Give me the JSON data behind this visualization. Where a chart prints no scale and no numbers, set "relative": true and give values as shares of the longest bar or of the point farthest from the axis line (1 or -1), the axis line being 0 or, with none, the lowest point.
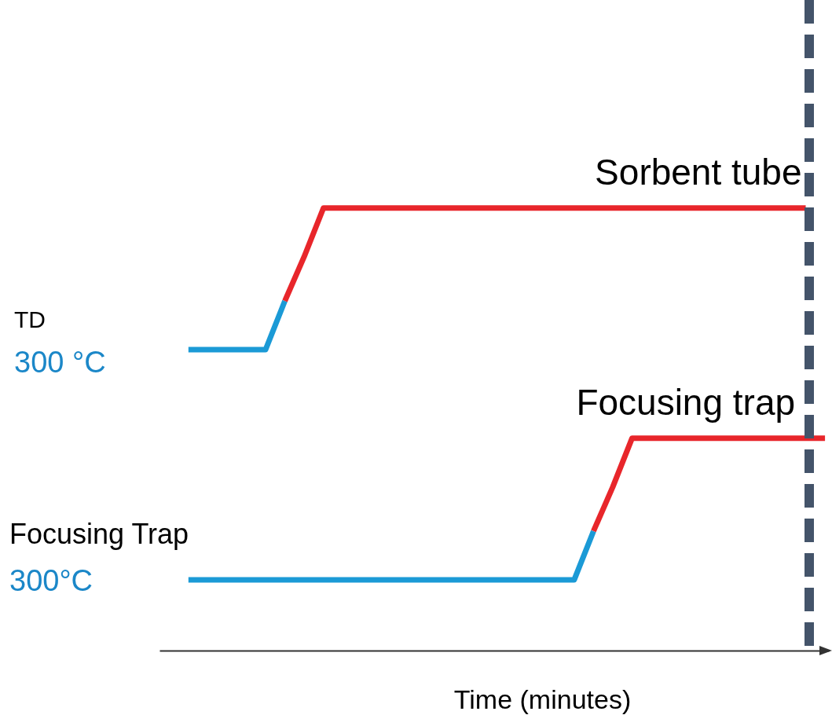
{
  "chart_data": {
    "type": "line",
    "relative": true,
    "xlabel": "Time (minutes)",
    "tick_labels": false,
    "categories": [
      null,
      null,
      null,
      null,
      null,
      null,
      null,
      null,
      null,
      null,
      null,
      null,
      null,
      null,
      null,
      null,
      null,
      null,
      null,
      null,
      null,
      null,
      null,
      null,
      null,
      null,
      null,
      null,
      null,
      null,
      null,
      null,
      null,
      null
    ],
    "series": [
      {
        "color": "#1b9ad6",
        "values": [
          0.68,
          0.68,
          0.68,
          0.68,
          0.68,
          0.79,
          null,
          null,
          null,
          null,
          null,
          null,
          null,
          null,
          null,
          null,
          null,
          null,
          null,
          null,
          null,
          null,
          null,
          null,
          null,
          null,
          null,
          null,
          null,
          null,
          null,
          null,
          null,
          null
        ]
      },
      {
        "name": "Sorbent tube",
        "color": "#e8262b",
        "values": [
          null,
          null,
          null,
          null,
          null,
          0.79,
          0.89,
          1,
          1,
          1,
          1,
          1,
          1,
          1,
          1,
          1,
          1,
          1,
          1,
          1,
          1,
          1,
          1,
          1,
          1,
          1,
          1,
          1,
          1,
          1,
          1,
          1,
          1,
          null
        ]
      },
      {
        "color": "#1b9ad6",
        "values": [
          0.16,
          0.16,
          0.16,
          0.16,
          0.16,
          0.16,
          0.16,
          0.16,
          0.16,
          0.16,
          0.16,
          0.16,
          0.16,
          0.16,
          0.16,
          0.16,
          0.16,
          0.16,
          0.16,
          0.16,
          0.16,
          0.27,
          null,
          null,
          null,
          null,
          null,
          null,
          null,
          null,
          null,
          null,
          null,
          null
        ]
      },
      {
        "name": "Focusing trap",
        "color": "#e8262b",
        "values": [
          null,
          null,
          null,
          null,
          null,
          null,
          null,
          null,
          null,
          null,
          null,
          null,
          null,
          null,
          null,
          null,
          null,
          null,
          null,
          null,
          null,
          0.27,
          0.37,
          0.48,
          0.48,
          0.48,
          0.48,
          0.48,
          0.48,
          0.48,
          0.48,
          0.48,
          0.48,
          0.48
        ]
      }
    ],
    "annotations": [
      "TD",
      "300 °C",
      "Focusing Trap",
      "300°C"
    ]
  }
}
